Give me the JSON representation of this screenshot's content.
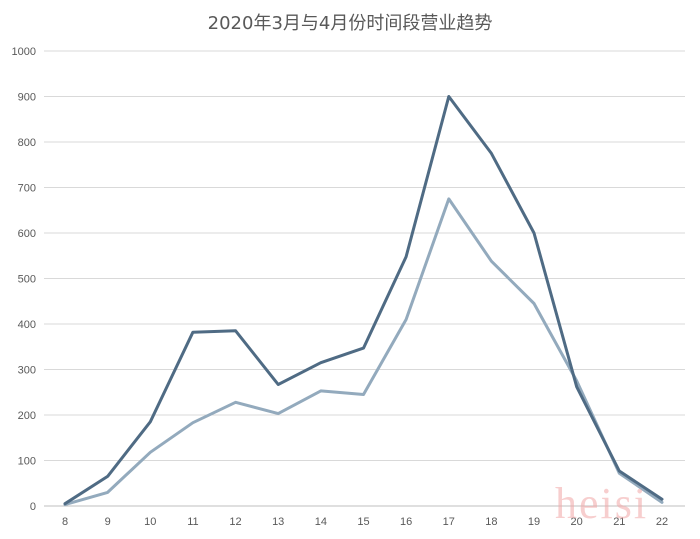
{
  "watermark": "heisi",
  "chart_data": {
    "type": "line",
    "title": "2020年3月与4月份时间段营业趋势",
    "xlabel": "",
    "ylabel": "",
    "categories": [
      "8",
      "9",
      "10",
      "11",
      "12",
      "13",
      "14",
      "15",
      "16",
      "17",
      "18",
      "19",
      "20",
      "21",
      "22"
    ],
    "ylim": [
      0,
      1000
    ],
    "yticks": [
      0,
      100,
      200,
      300,
      400,
      500,
      600,
      700,
      800,
      900,
      1000
    ],
    "grid": true,
    "legend": "none",
    "series": [
      {
        "color": "#4f6b84",
        "values": [
          5,
          65,
          185,
          382,
          385,
          267,
          315,
          347,
          548,
          900,
          775,
          600,
          262,
          77,
          15
        ]
      },
      {
        "color": "#93aabd",
        "values": [
          3,
          30,
          118,
          183,
          228,
          203,
          253,
          245,
          410,
          675,
          538,
          445,
          275,
          72,
          8
        ]
      }
    ]
  }
}
